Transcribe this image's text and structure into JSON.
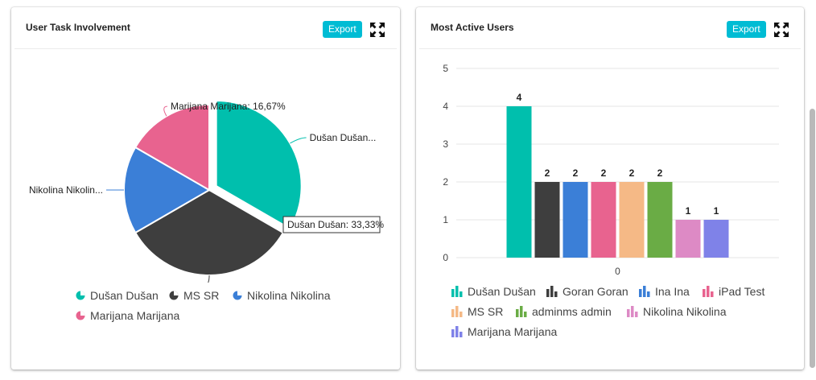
{
  "cards": {
    "left": {
      "title": "User Task Involvement",
      "export_label": "Export"
    },
    "right": {
      "title": "Most Active Users",
      "export_label": "Export"
    }
  },
  "icons": {
    "expand": "expand-arrows-icon"
  },
  "colors": {
    "accent": "#00bcd4"
  },
  "chart_data": [
    {
      "type": "pie",
      "title": "User Task Involvement",
      "slices": [
        {
          "name": "Dušan Dušan",
          "label": "Dušan Dušan",
          "short_label": "Dušan Dušan...",
          "value": 33.33,
          "value_label": "33,33%",
          "color": "#00bfad"
        },
        {
          "name": "MS SR",
          "label": "MS SR",
          "value": 33.33,
          "value_label": "33,33%",
          "color": "#3e3e3e"
        },
        {
          "name": "Nikolina Nikolina",
          "label": "Nikolina Nikolina",
          "short_label": "Nikolina Nikolin...",
          "value": 16.67,
          "value_label": "16,67%",
          "color": "#3b7fd7"
        },
        {
          "name": "Marijana Marijana",
          "label": "Marijana Marijana",
          "value": 16.67,
          "value_label": "16,67%",
          "color": "#e8638f"
        }
      ],
      "tooltip": "Dušan Dušan: 33,33%",
      "exploded_slice": "Dušan Dušan",
      "legend_position": "bottom"
    },
    {
      "type": "bar",
      "title": "Most Active Users",
      "categories": [
        "0"
      ],
      "series": [
        {
          "name": "Dušan Dušan",
          "values": [
            4
          ],
          "color": "#00bfad"
        },
        {
          "name": "Goran Goran",
          "values": [
            2
          ],
          "color": "#3e3e3e"
        },
        {
          "name": "Ina Ina",
          "values": [
            2
          ],
          "color": "#3b7fd7"
        },
        {
          "name": "iPad Test",
          "values": [
            2
          ],
          "color": "#e8638f"
        },
        {
          "name": "MS SR",
          "values": [
            2
          ],
          "color": "#f5b986"
        },
        {
          "name": "adminms admin",
          "values": [
            2
          ],
          "color": "#6aac45"
        },
        {
          "name": "Nikolina Nikolina",
          "values": [
            1
          ],
          "color": "#dd8ac5"
        },
        {
          "name": "Marijana Marijana",
          "values": [
            1
          ],
          "color": "#7f82e8"
        }
      ],
      "ylim": [
        0,
        5
      ],
      "yticks": [
        "0",
        "1",
        "2",
        "3",
        "4",
        "5"
      ],
      "grid": true,
      "legend_position": "bottom"
    }
  ]
}
